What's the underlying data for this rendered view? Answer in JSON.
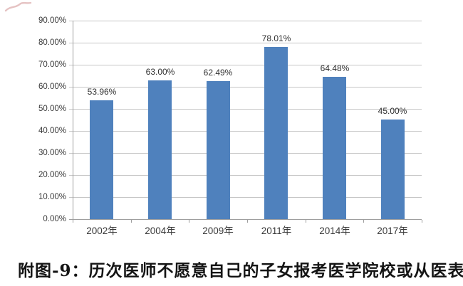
{
  "figure": {
    "caption": "附图-9：历次医师不愿意自己的子女报考医学院校或从医表"
  },
  "chart_data": {
    "type": "bar",
    "title": "",
    "xlabel": "",
    "ylabel": "",
    "categories": [
      "2002年",
      "2004年",
      "2009年",
      "2011年",
      "2014年",
      "2017年"
    ],
    "values": [
      53.96,
      63.0,
      62.49,
      78.01,
      64.48,
      45.0
    ],
    "value_labels": [
      "53.96%",
      "63.00%",
      "62.49%",
      "78.01%",
      "64.48%",
      "45.00%"
    ],
    "ylim": [
      0,
      90
    ],
    "y_ticks": [
      "0.00%",
      "10.00%",
      "20.00%",
      "30.00%",
      "40.00%",
      "50.00%",
      "60.00%",
      "70.00%",
      "80.00%",
      "90.00%"
    ],
    "grid": true,
    "legend_position": "none",
    "bar_color": "#4f81bd",
    "gridline_color": "#c6c6c6",
    "axis_color": "#9e9e9e",
    "label_color": "#303030"
  }
}
